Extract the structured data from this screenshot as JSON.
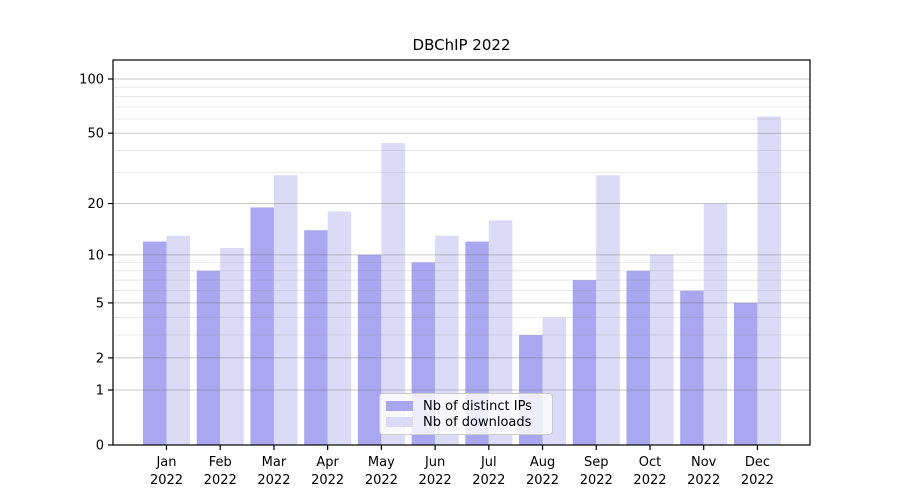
{
  "chart_data": {
    "type": "bar",
    "title": "DBChIP 2022",
    "categories": [
      "Jan 2022",
      "Feb 2022",
      "Mar 2022",
      "Apr 2022",
      "May 2022",
      "Jun 2022",
      "Jul 2022",
      "Aug 2022",
      "Sep 2022",
      "Oct 2022",
      "Nov 2022",
      "Dec 2022"
    ],
    "series": [
      {
        "name": "Nb of distinct IPs",
        "color": "#a9a7f0",
        "values": [
          12,
          8,
          19,
          14,
          10,
          9,
          12,
          3,
          7,
          8,
          6,
          5
        ]
      },
      {
        "name": "Nb of downloads",
        "color": "#dbdaf7",
        "values": [
          13,
          11,
          29,
          18,
          44,
          13,
          16,
          4,
          29,
          10,
          20,
          62
        ]
      }
    ],
    "xlabel": "",
    "ylabel": "",
    "y_scale": "log10(value+1)",
    "y_major_ticks": [
      0,
      1,
      2,
      5,
      10,
      20,
      50,
      100
    ],
    "y_minor_gridlines": [
      3,
      4,
      6,
      7,
      8,
      9,
      30,
      40,
      60,
      70,
      80,
      90
    ],
    "ylim": [
      0,
      127
    ],
    "grid": true,
    "legend_position": "lower-center-inside",
    "colors": {
      "major_gridline": "rgba(100,100,100,0.35)",
      "minor_gridline": "rgba(130,130,130,0.18)",
      "axis": "#000000",
      "background": "#ffffff"
    }
  }
}
